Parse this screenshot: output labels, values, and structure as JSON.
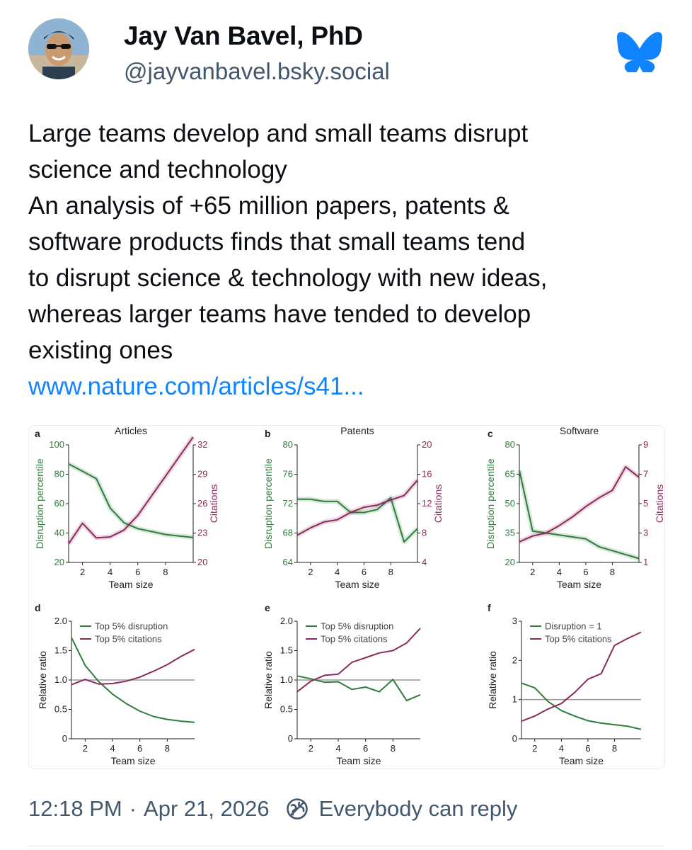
{
  "author": {
    "name": "Jay Van Bavel, PhD",
    "handle": "@jayvanbavel.bsky.social"
  },
  "icons": {
    "avatar": "avatar-photo",
    "app_logo": "bluesky-butterfly-icon",
    "reply_setting": "reply-restriction-icon"
  },
  "colors": {
    "accent": "#1083fe",
    "disruption": "#2e7d3b",
    "citations": "#8b2a5c",
    "muted": "#42576c"
  },
  "post": {
    "lines": [
      "Large teams develop and small teams disrupt",
      "science and technology",
      "An analysis of +65 million papers, patents &",
      "software products finds that small teams tend",
      "to disrupt science & technology with new ideas,",
      "whereas larger teams have tended to develop",
      "existing ones"
    ],
    "link_text": "www.nature.com/articles/s41..."
  },
  "figure": {
    "panel_letters": [
      "a",
      "b",
      "c",
      "d",
      "e",
      "f"
    ],
    "axis_text": {
      "team_size": "Team size",
      "disruption_percentile": "Disruption percentile",
      "citations": "Citations",
      "relative_ratio": "Relative ratio"
    }
  },
  "chart_data": [
    {
      "type": "line",
      "panel": "a",
      "title": "Articles",
      "xlabel": "Team size",
      "ylabel": "Disruption percentile",
      "y2label": "Citations",
      "xlim": [
        1,
        10
      ],
      "xticks": [
        2,
        4,
        6,
        8
      ],
      "ylim": [
        20,
        100
      ],
      "yticks": [
        20,
        40,
        60,
        80,
        100
      ],
      "y2lim": [
        20,
        32
      ],
      "y2ticks": [
        20,
        23,
        26,
        29,
        32
      ],
      "series": [
        {
          "axis": "left",
          "x": [
            1,
            2,
            3,
            4,
            5,
            6,
            7,
            8,
            9,
            10
          ],
          "values": [
            87,
            82,
            77,
            57,
            47,
            43,
            41,
            39,
            38,
            37
          ]
        },
        {
          "axis": "right",
          "x": [
            1,
            2,
            3,
            4,
            5,
            6,
            7,
            8,
            9,
            10
          ],
          "values": [
            21.9,
            24,
            22.5,
            22.6,
            23.3,
            24.8,
            26.8,
            28.8,
            30.8,
            32.8
          ]
        }
      ]
    },
    {
      "type": "line",
      "panel": "b",
      "title": "Patents",
      "xlabel": "Team size",
      "ylabel": "Disruption percentile",
      "y2label": "Citations",
      "xlim": [
        1,
        10
      ],
      "xticks": [
        2,
        4,
        6,
        8
      ],
      "ylim": [
        64,
        80
      ],
      "yticks": [
        64,
        68,
        72,
        76,
        80
      ],
      "y2lim": [
        4,
        20
      ],
      "y2ticks": [
        4,
        8,
        12,
        16,
        20
      ],
      "series": [
        {
          "axis": "left",
          "x": [
            1,
            2,
            3,
            4,
            5,
            6,
            7,
            8,
            9,
            10
          ],
          "values": [
            72.6,
            72.6,
            72.3,
            72.3,
            70.8,
            70.8,
            71.2,
            72.8,
            66.8,
            68.6
          ]
        },
        {
          "axis": "right",
          "x": [
            1,
            2,
            3,
            4,
            5,
            6,
            7,
            8,
            9,
            10
          ],
          "values": [
            7.7,
            8.7,
            9.5,
            9.8,
            10.8,
            11.5,
            11.8,
            12.5,
            13.1,
            15.2
          ]
        }
      ]
    },
    {
      "type": "line",
      "panel": "c",
      "title": "Software",
      "xlabel": "Team size",
      "ylabel": "Disruption percentile",
      "y2label": "Citations",
      "xlim": [
        1,
        10
      ],
      "xticks": [
        2,
        4,
        6,
        8
      ],
      "ylim": [
        20,
        80
      ],
      "yticks": [
        20,
        35,
        50,
        65,
        80
      ],
      "y2lim": [
        1,
        9
      ],
      "y2ticks": [
        1,
        3,
        5,
        7,
        9
      ],
      "series": [
        {
          "axis": "left",
          "x": [
            1,
            2,
            3,
            4,
            5,
            6,
            7,
            8,
            9,
            10
          ],
          "values": [
            67,
            36,
            35,
            34,
            33,
            32,
            28,
            26,
            24,
            22
          ]
        },
        {
          "axis": "right",
          "x": [
            1,
            2,
            3,
            4,
            5,
            6,
            7,
            8,
            9,
            10
          ],
          "values": [
            2.4,
            2.8,
            3.0,
            3.5,
            4.1,
            4.8,
            5.4,
            5.9,
            7.5,
            6.8
          ]
        }
      ]
    },
    {
      "type": "line",
      "panel": "d",
      "xlabel": "Team size",
      "ylabel": "Relative ratio",
      "xlim": [
        1,
        10
      ],
      "xticks": [
        2,
        4,
        6,
        8
      ],
      "ylim": [
        0,
        2.0
      ],
      "yticks": [
        0,
        0.5,
        1.0,
        1.5,
        2.0
      ],
      "ytick_labels": [
        "0",
        "0.5",
        "1.0",
        "1.5",
        "2.0"
      ],
      "reference_line": 1.0,
      "series": [
        {
          "name": "Top 5% disruption",
          "x": [
            1,
            2,
            3,
            4,
            5,
            6,
            7,
            8,
            9,
            10
          ],
          "values": [
            1.72,
            1.25,
            0.97,
            0.76,
            0.6,
            0.47,
            0.38,
            0.33,
            0.3,
            0.28
          ]
        },
        {
          "name": "Top 5% citations",
          "x": [
            1,
            2,
            3,
            4,
            5,
            6,
            7,
            8,
            9,
            10
          ],
          "values": [
            0.92,
            1.01,
            0.93,
            0.94,
            0.98,
            1.05,
            1.15,
            1.26,
            1.4,
            1.52
          ]
        }
      ]
    },
    {
      "type": "line",
      "panel": "e",
      "xlabel": "Team size",
      "ylabel": "Relative ratio",
      "xlim": [
        1,
        10
      ],
      "xticks": [
        2,
        4,
        6,
        8
      ],
      "ylim": [
        0,
        2.0
      ],
      "yticks": [
        0,
        0.5,
        1.0,
        1.5,
        2.0
      ],
      "ytick_labels": [
        "0",
        "0.5",
        "1.0",
        "1.5",
        "2.0"
      ],
      "reference_line": 1.0,
      "series": [
        {
          "name": "Top 5% disruption",
          "x": [
            1,
            2,
            3,
            4,
            5,
            6,
            7,
            8,
            9,
            10
          ],
          "values": [
            1.07,
            1.02,
            0.96,
            0.97,
            0.84,
            0.88,
            0.8,
            1.01,
            0.65,
            0.75
          ]
        },
        {
          "name": "Top 5% citations",
          "x": [
            1,
            2,
            3,
            4,
            5,
            6,
            7,
            8,
            9,
            10
          ],
          "values": [
            0.8,
            0.98,
            1.08,
            1.1,
            1.3,
            1.38,
            1.46,
            1.5,
            1.63,
            1.88
          ]
        }
      ]
    },
    {
      "type": "line",
      "panel": "f",
      "xlabel": "Team size",
      "ylabel": "Relative ratio",
      "xlim": [
        1,
        10
      ],
      "xticks": [
        2,
        4,
        6,
        8
      ],
      "ylim": [
        0,
        3
      ],
      "yticks": [
        0,
        1,
        2,
        3
      ],
      "ytick_labels": [
        "0",
        "1",
        "2",
        "3"
      ],
      "reference_line": 1.0,
      "series": [
        {
          "name": "Disruption = 1",
          "x": [
            1,
            2,
            3,
            4,
            5,
            6,
            7,
            8,
            9,
            10
          ],
          "values": [
            1.42,
            1.3,
            0.95,
            0.72,
            0.58,
            0.46,
            0.4,
            0.36,
            0.32,
            0.24
          ]
        },
        {
          "name": "Top 5% citations",
          "x": [
            1,
            2,
            3,
            4,
            5,
            6,
            7,
            8,
            9,
            10
          ],
          "values": [
            0.45,
            0.58,
            0.76,
            0.9,
            1.18,
            1.52,
            1.66,
            2.38,
            2.56,
            2.72
          ]
        }
      ]
    }
  ],
  "footer": {
    "time": "12:18 PM",
    "separator": "·",
    "date": "Apr 21, 2026",
    "reply_setting": "Everybody can reply"
  }
}
